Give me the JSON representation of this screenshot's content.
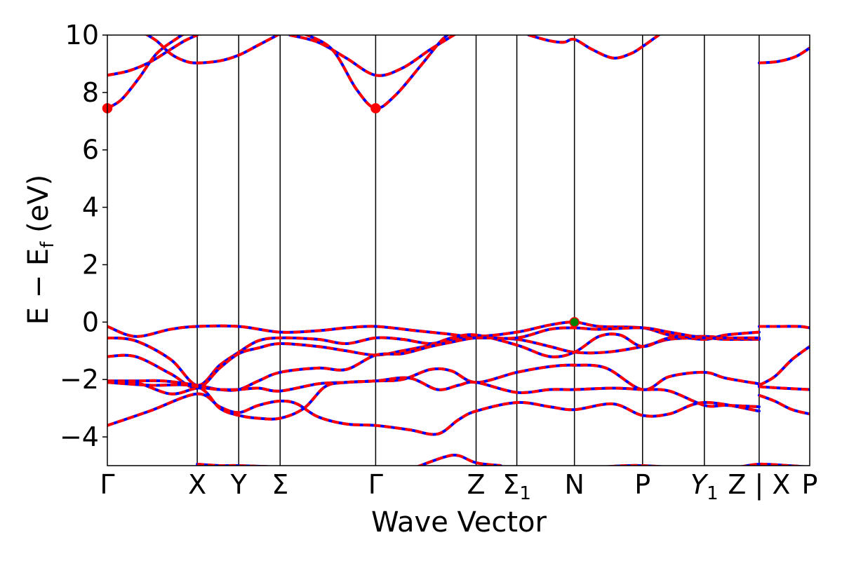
{
  "chart_data": {
    "type": "line",
    "title": "",
    "xlabel": "Wave Vector",
    "ylabel": "E − E",
    "ylabel_sub": "f",
    "ylabel_unit": " (eV)",
    "ylim": [
      -5,
      10
    ],
    "yticks": [
      -4,
      -2,
      0,
      2,
      4,
      6,
      8,
      10
    ],
    "ytick_labels": [
      "−4",
      "−2",
      "0",
      "2",
      "4",
      "6",
      "8",
      "10"
    ],
    "xlim": [
      0,
      1000
    ],
    "grid": false,
    "kpoints": [
      {
        "x": 0,
        "label": "Γ",
        "sub": ""
      },
      {
        "x": 128,
        "label": "X",
        "sub": ""
      },
      {
        "x": 187,
        "label": "Y",
        "sub": ""
      },
      {
        "x": 246,
        "label": "Σ",
        "sub": ""
      },
      {
        "x": 382,
        "label": "Γ",
        "sub": ""
      },
      {
        "x": 525,
        "label": "Z",
        "sub": ""
      },
      {
        "x": 583,
        "label": "Σ",
        "sub": "1"
      },
      {
        "x": 665,
        "label": "N",
        "sub": ""
      },
      {
        "x": 762,
        "label": "P",
        "sub": ""
      },
      {
        "x": 850,
        "label": "Y",
        "sub": "1",
        "italic": true
      },
      {
        "x": 928,
        "label": "Z | X",
        "sub": ""
      },
      {
        "x": 1000,
        "label": "P",
        "sub": ""
      }
    ],
    "colors": {
      "up": "#ff0000",
      "down": "#0000ff",
      "cbm": "#ff0000",
      "vbm": "#008000"
    },
    "series": [
      {
        "values": [
          [
            0,
            8.6
          ],
          [
            30,
            8.75
          ],
          [
            60,
            9.05
          ],
          [
            90,
            9.5
          ],
          [
            110,
            9.8
          ],
          [
            128,
            10.0
          ]
        ]
      },
      {
        "values": [
          [
            0,
            7.45
          ],
          [
            20,
            7.75
          ],
          [
            45,
            8.5
          ],
          [
            70,
            9.35
          ],
          [
            100,
            9.9
          ],
          [
            110,
            10.05
          ]
        ]
      },
      {
        "values": [
          [
            50,
            10.1
          ],
          [
            70,
            9.8
          ],
          [
            90,
            9.35
          ],
          [
            110,
            9.1
          ],
          [
            128,
            9.03
          ],
          [
            160,
            9.1
          ],
          [
            187,
            9.3
          ],
          [
            215,
            9.65
          ],
          [
            246,
            10.05
          ]
        ]
      },
      {
        "values": [
          [
            260,
            10.0
          ],
          [
            300,
            9.75
          ],
          [
            340,
            9.2
          ],
          [
            382,
            8.6
          ],
          [
            420,
            8.85
          ],
          [
            460,
            9.5
          ],
          [
            500,
            10.1
          ]
        ]
      },
      {
        "values": [
          [
            280,
            10.05
          ],
          [
            320,
            9.5
          ],
          [
            355,
            8.1
          ],
          [
            382,
            7.45
          ],
          [
            410,
            7.9
          ],
          [
            445,
            8.9
          ],
          [
            475,
            9.8
          ],
          [
            490,
            10.1
          ]
        ]
      },
      {
        "values": [
          [
            600,
            10.0
          ],
          [
            630,
            9.8
          ],
          [
            650,
            9.75
          ],
          [
            665,
            9.85
          ],
          [
            690,
            9.5
          ],
          [
            720,
            9.2
          ],
          [
            745,
            9.35
          ],
          [
            762,
            9.6
          ],
          [
            785,
            10.0
          ]
        ]
      },
      {
        "values": [
          [
            928,
            9.03
          ],
          [
            955,
            9.08
          ],
          [
            980,
            9.25
          ],
          [
            1000,
            9.55
          ]
        ]
      },
      {
        "values": [
          [
            0,
            -0.15
          ],
          [
            40,
            -0.5
          ],
          [
            90,
            -0.25
          ],
          [
            128,
            -0.15
          ],
          [
            187,
            -0.15
          ],
          [
            246,
            -0.35
          ],
          [
            300,
            -0.3
          ],
          [
            340,
            -0.2
          ],
          [
            382,
            -0.15
          ],
          [
            440,
            -0.3
          ],
          [
            480,
            -0.4
          ],
          [
            525,
            -0.5
          ],
          [
            583,
            -0.35
          ],
          [
            630,
            -0.1
          ],
          [
            665,
            0.0
          ],
          [
            700,
            -0.15
          ],
          [
            762,
            -0.2
          ],
          [
            800,
            -0.45
          ],
          [
            850,
            -0.6
          ],
          [
            880,
            -0.45
          ],
          [
            928,
            -0.35
          ]
        ]
      },
      {
        "values": [
          [
            0,
            -0.55
          ],
          [
            40,
            -0.65
          ],
          [
            90,
            -1.3
          ],
          [
            128,
            -2.2
          ],
          [
            160,
            -1.5
          ],
          [
            187,
            -1.05
          ],
          [
            215,
            -0.65
          ],
          [
            246,
            -0.55
          ],
          [
            300,
            -0.6
          ],
          [
            340,
            -0.75
          ],
          [
            382,
            -0.55
          ],
          [
            420,
            -0.6
          ],
          [
            460,
            -0.75
          ],
          [
            490,
            -0.6
          ],
          [
            525,
            -0.55
          ],
          [
            583,
            -0.6
          ],
          [
            630,
            -0.85
          ],
          [
            665,
            -1.05
          ],
          [
            710,
            -1.05
          ],
          [
            762,
            -0.85
          ],
          [
            800,
            -0.6
          ],
          [
            850,
            -0.55
          ],
          [
            880,
            -0.6
          ],
          [
            928,
            -0.6
          ]
        ]
      },
      {
        "values": [
          [
            0,
            -1.2
          ],
          [
            40,
            -1.2
          ],
          [
            90,
            -1.8
          ],
          [
            128,
            -2.3
          ],
          [
            160,
            -1.6
          ],
          [
            187,
            -1.1
          ],
          [
            215,
            -0.9
          ],
          [
            246,
            -0.75
          ],
          [
            300,
            -0.85
          ],
          [
            340,
            -1.0
          ],
          [
            382,
            -1.15
          ],
          [
            420,
            -1.0
          ],
          [
            460,
            -0.8
          ],
          [
            490,
            -0.55
          ],
          [
            525,
            -0.45
          ],
          [
            583,
            -0.8
          ],
          [
            630,
            -1.2
          ],
          [
            665,
            -1.05
          ],
          [
            700,
            -0.5
          ],
          [
            730,
            -0.45
          ],
          [
            762,
            -0.85
          ],
          [
            800,
            -0.55
          ],
          [
            850,
            -0.5
          ],
          [
            880,
            -0.55
          ],
          [
            928,
            -0.6
          ]
        ]
      },
      {
        "values": [
          [
            0,
            -2.05
          ],
          [
            40,
            -2.05
          ],
          [
            80,
            -2.05
          ],
          [
            128,
            -2.2
          ],
          [
            160,
            -2.35
          ],
          [
            187,
            -2.35
          ],
          [
            215,
            -2.05
          ],
          [
            246,
            -1.75
          ],
          [
            300,
            -1.6
          ],
          [
            340,
            -1.65
          ],
          [
            382,
            -1.15
          ],
          [
            420,
            -1.1
          ],
          [
            460,
            -0.85
          ],
          [
            490,
            -0.7
          ],
          [
            525,
            -0.55
          ],
          [
            583,
            -0.55
          ],
          [
            630,
            -0.25
          ],
          [
            665,
            -0.2
          ],
          [
            700,
            -0.25
          ],
          [
            762,
            -0.2
          ],
          [
            800,
            -0.35
          ],
          [
            850,
            -0.55
          ],
          [
            880,
            -0.55
          ],
          [
            928,
            -0.55
          ]
        ]
      },
      {
        "values": [
          [
            0,
            -2.1
          ],
          [
            40,
            -2.1
          ],
          [
            90,
            -2.5
          ],
          [
            128,
            -2.3
          ],
          [
            160,
            -2.35
          ],
          [
            187,
            -2.35
          ],
          [
            215,
            -2.3
          ],
          [
            246,
            -2.4
          ],
          [
            300,
            -2.15
          ],
          [
            340,
            -2.1
          ],
          [
            382,
            -2.05
          ],
          [
            420,
            -2.0
          ],
          [
            460,
            -1.65
          ],
          [
            490,
            -1.7
          ],
          [
            525,
            -2.1
          ],
          [
            583,
            -1.75
          ],
          [
            630,
            -1.55
          ],
          [
            665,
            -1.5
          ],
          [
            710,
            -1.6
          ],
          [
            762,
            -2.35
          ],
          [
            800,
            -1.9
          ],
          [
            850,
            -1.75
          ],
          [
            880,
            -1.95
          ],
          [
            928,
            -2.15
          ]
        ]
      },
      {
        "values": [
          [
            0,
            -3.6
          ],
          [
            60,
            -3.1
          ],
          [
            128,
            -2.5
          ],
          [
            160,
            -2.95
          ],
          [
            187,
            -3.15
          ],
          [
            215,
            -2.9
          ],
          [
            246,
            -2.75
          ],
          [
            270,
            -2.85
          ],
          [
            300,
            -3.3
          ],
          [
            340,
            -3.55
          ],
          [
            382,
            -3.6
          ],
          [
            430,
            -3.75
          ],
          [
            470,
            -3.9
          ],
          [
            500,
            -3.4
          ],
          [
            525,
            -3.1
          ],
          [
            583,
            -2.8
          ],
          [
            630,
            -2.95
          ],
          [
            665,
            -3.05
          ],
          [
            720,
            -2.85
          ],
          [
            762,
            -3.25
          ],
          [
            800,
            -3.2
          ],
          [
            850,
            -2.8
          ],
          [
            928,
            -3.1
          ]
        ]
      },
      {
        "values": [
          [
            0,
            -2.1
          ],
          [
            60,
            -2.2
          ],
          [
            128,
            -2.25
          ],
          [
            160,
            -3.0
          ],
          [
            187,
            -3.25
          ],
          [
            215,
            -3.35
          ],
          [
            246,
            -3.35
          ],
          [
            280,
            -3.0
          ],
          [
            310,
            -2.25
          ],
          [
            340,
            -2.1
          ],
          [
            382,
            -2.05
          ],
          [
            430,
            -1.95
          ],
          [
            470,
            -2.35
          ],
          [
            500,
            -2.2
          ],
          [
            525,
            -2.1
          ],
          [
            583,
            -2.45
          ],
          [
            630,
            -2.35
          ],
          [
            665,
            -2.35
          ],
          [
            720,
            -2.3
          ],
          [
            762,
            -2.35
          ],
          [
            800,
            -2.4
          ],
          [
            850,
            -2.9
          ],
          [
            880,
            -2.9
          ],
          [
            928,
            -2.95
          ]
        ]
      },
      {
        "values": [
          [
            128,
            -4.95
          ],
          [
            160,
            -5.0
          ],
          [
            187,
            -5.0
          ],
          [
            246,
            -5.05
          ]
        ]
      },
      {
        "values": [
          [
            440,
            -5.05
          ],
          [
            480,
            -4.7
          ],
          [
            500,
            -4.65
          ],
          [
            525,
            -4.9
          ],
          [
            560,
            -5.0
          ]
        ]
      },
      {
        "values": [
          [
            900,
            -5.05
          ],
          [
            928,
            -4.95
          ],
          [
            970,
            -5.0
          ],
          [
            1000,
            -5.05
          ]
        ]
      },
      {
        "values": [
          [
            700,
            -5.05
          ],
          [
            740,
            -5.0
          ],
          [
            762,
            -5.0
          ],
          [
            800,
            -5.05
          ]
        ]
      },
      {
        "values": [
          [
            928,
            -0.15
          ],
          [
            960,
            -0.15
          ],
          [
            985,
            -0.15
          ],
          [
            1000,
            -0.2
          ]
        ]
      },
      {
        "values": [
          [
            928,
            -2.2
          ],
          [
            950,
            -1.9
          ],
          [
            975,
            -1.3
          ],
          [
            1000,
            -0.85
          ]
        ]
      },
      {
        "values": [
          [
            928,
            -2.25
          ],
          [
            960,
            -2.3
          ],
          [
            1000,
            -2.35
          ]
        ]
      },
      {
        "values": [
          [
            928,
            -2.55
          ],
          [
            950,
            -2.75
          ],
          [
            975,
            -3.05
          ],
          [
            1000,
            -3.2
          ]
        ]
      }
    ],
    "markers": [
      {
        "x": 0,
        "y": 7.45,
        "kind": "cbm"
      },
      {
        "x": 382,
        "y": 7.45,
        "kind": "cbm"
      },
      {
        "x": 665,
        "y": 0.0,
        "kind": "vbm"
      }
    ]
  }
}
